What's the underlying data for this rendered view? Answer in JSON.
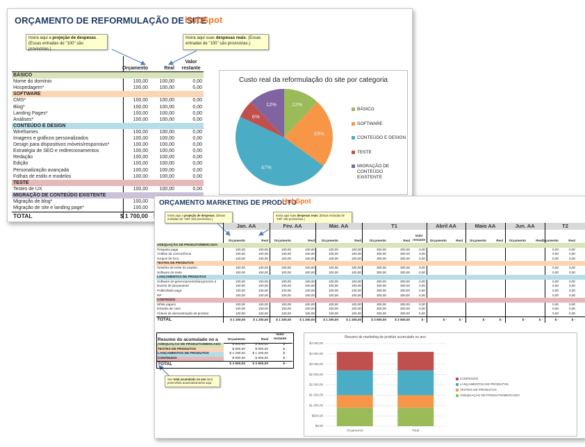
{
  "site_budget": {
    "title": "ORÇAMENTO DE REFORMULAÇÃO DE SITE",
    "logo": "HubSpot",
    "notes": [
      [
        {
          "text": "Insira aqui a "
        },
        {
          "text": "projeção de despesas",
          "bold": true
        },
        {
          "text": ". (Essas entradas de \"100\" são provisórias.)"
        }
      ],
      [
        {
          "text": "Insira aqui suas "
        },
        {
          "text": "despesas reais",
          "bold": true
        },
        {
          "text": ". (Essas entradas de \"100\" são provisórias.)"
        }
      ]
    ],
    "headers": [
      "Orçamento",
      "Real",
      "Valor restante"
    ],
    "rows": [
      {
        "section": "BÁSICO",
        "color": "#d8e4bc"
      },
      {
        "label": "Nome do domínio",
        "cells": [
          "100,00",
          "100,00",
          "0,00"
        ]
      },
      {
        "label": "Hospedagem*",
        "cells": [
          "100,00",
          "100,00",
          "0,00"
        ]
      },
      {
        "section": "SOFTWARE",
        "color": "#fcd5b4"
      },
      {
        "label": "CMS*",
        "cells": [
          "100,00",
          "100,00",
          "0,00"
        ]
      },
      {
        "label": "Blog*",
        "cells": [
          "100,00",
          "100,00",
          "0,00"
        ]
      },
      {
        "label": "Landing Pages*",
        "cells": [
          "100,00",
          "100,00",
          "0,00"
        ]
      },
      {
        "label": "Análises*",
        "cells": [
          "100,00",
          "100,00",
          "0,00"
        ]
      },
      {
        "section": "CONTEÚDO E DESIGN",
        "color": "#b7dee8"
      },
      {
        "label": "Wireframes",
        "cells": [
          "100,00",
          "100,00",
          "0,00"
        ]
      },
      {
        "label": "Imagens e gráficos personalizados",
        "cells": [
          "100,00",
          "100,00",
          "0,00"
        ]
      },
      {
        "label": "Design para dispositivos móveis/responsivo*",
        "cells": [
          "100,00",
          "100,00",
          "0,00"
        ]
      },
      {
        "label": "Estratégia de SEO e redirecionamentos",
        "cells": [
          "100,00",
          "100,00",
          "0,00"
        ]
      },
      {
        "label": "Redação",
        "cells": [
          "100,00",
          "100,00",
          "0,00"
        ]
      },
      {
        "label": "Edição",
        "cells": [
          "100,00",
          "100,00",
          "0,00"
        ]
      },
      {
        "label": "Personalização avançada",
        "cells": [
          "100,00",
          "100,00",
          "0,00"
        ]
      },
      {
        "label": "Folhas de estilo e modelos",
        "cells": [
          "100,00",
          "100,00",
          "0,00"
        ]
      },
      {
        "section": "TESTE",
        "color": "#e6b8b7"
      },
      {
        "label": "Testes de UX",
        "cells": [
          "100,00",
          "100,00",
          "0,00"
        ]
      },
      {
        "section": "MIGRAÇÃO DE CONTEÚDO EXISTENTE",
        "color": "#ccc0da"
      },
      {
        "label": "Migração de blog*",
        "cells": [
          "100,00"
        ]
      },
      {
        "label": "Migração de site e landing page*",
        "cells": [
          "100,00"
        ]
      }
    ],
    "total": {
      "label": "TOTAL",
      "cells": [
        "$ 1 700,00",
        "$"
      ]
    },
    "pie": {
      "type": "pie",
      "title": "Custo real da reformulação do site por categoria",
      "categories": [
        "BÁSICO",
        "SOFTWARE",
        "CONTEÚDO E DESIGN",
        "TESTE",
        "MIGRAÇÃO DE CONTEÚDO EXISTENTE"
      ],
      "values": [
        12,
        23,
        47,
        6,
        12
      ],
      "value_labels": [
        "12%",
        "23%",
        "47%",
        "6%",
        "12%"
      ],
      "colors": [
        "#9bbb59",
        "#f79646",
        "#4bacc6",
        "#c0504d",
        "#8064a2"
      ]
    }
  },
  "product_budget": {
    "title": "ORÇAMENTO MARKETING DE PRODUTO",
    "logo": "HubSpot",
    "notes": [
      [
        {
          "text": "Insira aqui a "
        },
        {
          "text": "projeção de despesas",
          "bold": true
        },
        {
          "text": ". (Essas entradas de \"100\" são provisórias.)"
        }
      ],
      [
        {
          "text": "Insira aqui suas "
        },
        {
          "text": "despesas reais",
          "bold": true
        },
        {
          "text": ". (Essas entradas de \"100\" são provisórias.)"
        }
      ]
    ],
    "periods": [
      "Jan. AA",
      "Fev. AA",
      "Mar. AA",
      "T1",
      "Abril AA",
      "Maio AA",
      "Jun. AA",
      "T2"
    ],
    "subheaders": [
      "Orçamento",
      "Real",
      "Valor restante"
    ],
    "rows": [
      {
        "section": "ADEQUAÇÃO DE PRODUTO/MERCADO",
        "color": "#d8e4bc"
      },
      {
        "label": "Pesquisa paga",
        "q1": [
          "100,00",
          "100,00",
          "100,00",
          "100,00",
          "100,00",
          "100,00",
          "300,00",
          "300,00",
          "0,00"
        ],
        "t2": [
          "0,00",
          "0,00"
        ]
      },
      {
        "label": "Análise da concorrência",
        "q1": [
          "100,00",
          "100,00",
          "100,00",
          "100,00",
          "100,00",
          "100,00",
          "300,00",
          "300,00",
          "0,00"
        ],
        "t2": [
          "0,00",
          "0,00"
        ]
      },
      {
        "label": "Grupos de foco",
        "q1": [
          "100,00",
          "100,00",
          "100,00",
          "100,00",
          "100,00",
          "100,00",
          "300,00",
          "300,00",
          "0,00"
        ],
        "t2": [
          "0,00",
          "0,00"
        ]
      },
      {
        "section": "TESTES DE PRODUTOS",
        "color": "#fcd5b4"
      },
      {
        "label": "Sessões de teste do usuário",
        "q1": [
          "100,00",
          "100,00",
          "100,00",
          "100,00",
          "100,00",
          "100,00",
          "300,00",
          "300,00",
          "0,00"
        ],
        "t2": [
          "0,00",
          "0,00"
        ]
      },
      {
        "label": "Software de teste",
        "q1": [
          "100,00",
          "100,00",
          "100,00",
          "100,00",
          "100,00",
          "100,00",
          "300,00",
          "300,00",
          "0,00"
        ],
        "t2": [
          "0,00",
          "0,00"
        ]
      },
      {
        "section": "LANÇAMENTOS DE PRODUTOS",
        "color": "#b7dee8"
      },
      {
        "label": "Software de gerenciamento/lançamento d",
        "q1": [
          "100,00",
          "100,00",
          "100,00",
          "100,00",
          "100,00",
          "100,00",
          "300,00",
          "300,00",
          "0,00"
        ],
        "t2": [
          "0,00",
          "0,00"
        ]
      },
      {
        "label": "Evento de lançamento",
        "q1": [
          "100,00",
          "100,00",
          "100,00",
          "100,00",
          "100,00",
          "100,00",
          "300,00",
          "300,00",
          "0,00"
        ],
        "t2": [
          "0,00",
          "0,00"
        ]
      },
      {
        "label": "Publicidade paga",
        "q1": [
          "100,00",
          "100,00",
          "100,00",
          "100,00",
          "100,00",
          "100,00",
          "300,00",
          "300,00",
          "0,00"
        ],
        "t2": [
          "0,00",
          "0,00"
        ]
      },
      {
        "label": "RP",
        "q1": [
          "100,00",
          "100,00",
          "100,00",
          "100,00",
          "100,00",
          "100,00",
          "300,00",
          "300,00",
          "0,00"
        ],
        "t2": [
          "0,00",
          "0,00"
        ]
      },
      {
        "section": "CONTEÚDO",
        "color": "#e6b8b7"
      },
      {
        "label": "White papers",
        "q1": [
          "100,00",
          "100,00",
          "100,00",
          "100,00",
          "100,00",
          "100,00",
          "300,00",
          "300,00",
          "0,00"
        ],
        "t2": [
          "0,00",
          "0,00"
        ]
      },
      {
        "label": "Estudos de caso",
        "q1": [
          "100,00",
          "100,00",
          "100,00",
          "100,00",
          "100,00",
          "100,00",
          "300,00",
          "300,00",
          "0,00"
        ],
        "t2": [
          "0,00",
          "0,00"
        ]
      },
      {
        "label": "Vídeos de demonstração de produto",
        "q1": [
          "100,00",
          "100,00",
          "100,00",
          "100,00",
          "100,00",
          "100,00",
          "300,00",
          "300,00",
          "0,00"
        ],
        "t2": [
          "0,00",
          "0,00"
        ]
      }
    ],
    "total": {
      "label": "TOTAL",
      "q1": [
        "$ 1 200,00",
        "$ 1 200,00",
        "$ 1 200,00",
        "$ 1 200,00",
        "$ 1 200,00",
        "$ 1 200,00",
        "$ 3 600,00",
        "$ 3 600,00",
        "$ -"
      ],
      "q2_months": [
        "$ -",
        "$ -",
        "$ -",
        "$ -",
        "$ -",
        "$ -"
      ],
      "t2": [
        "$ -",
        "$ -"
      ]
    },
    "summary": {
      "title": "Resumo do acumulado no a",
      "headers": [
        "Orçamento",
        "Real",
        "Valor restante"
      ],
      "rows": [
        {
          "label": "ADEQUAÇÃO DE PRODUTO/MERCADO",
          "color": "#d8e4bc",
          "cells": [
            "$ 900,00",
            "$ 900,00",
            "$ -"
          ]
        },
        {
          "label": "TESTES DE PRODUTOS",
          "color": "#fcd5b4",
          "cells": [
            "$ 600,00",
            "$ 600,00",
            "$ -"
          ]
        },
        {
          "label": "LANÇAMENTOS DE PRODUTOS",
          "color": "#b7dee8",
          "cells": [
            "$ 1 200,00",
            "$ 1 200,00",
            "$ -"
          ]
        },
        {
          "label": "CONTEÚDO",
          "color": "#e6b8b7",
          "cells": [
            "$ 900,00",
            "$ 900,00",
            "$ -"
          ]
        }
      ],
      "total": {
        "label": "TOTAL",
        "cells": [
          "$ 3 600,00",
          "$ 3 600,00",
          "$ -"
        ]
      },
      "note": [
        {
          "text": "Seu "
        },
        {
          "text": "total acumulado no ano",
          "bold": true
        },
        {
          "text": " será preenchido automaticamente aqui."
        }
      ]
    },
    "chart": {
      "type": "bar",
      "stacked": true,
      "title": "Resumo de marketing de produto acumulado no ano",
      "categories": [
        "Orçamento",
        "Real"
      ],
      "series": [
        {
          "name": "ADEQUAÇÃO DE PRODUTO/MERCADO",
          "color": "#9bbb59",
          "values": [
            900,
            900
          ]
        },
        {
          "name": "TESTES DE PRODUTOS",
          "color": "#f79646",
          "values": [
            600,
            600
          ]
        },
        {
          "name": "LANÇAMENTOS DE PRODUTOS",
          "color": "#4bacc6",
          "values": [
            1200,
            1200
          ]
        },
        {
          "name": "CONTEÚDO",
          "color": "#c0504d",
          "values": [
            900,
            900
          ]
        }
      ],
      "ylim": [
        0,
        4000
      ],
      "yticks": [
        {
          "value": 0,
          "label": "$0,00"
        },
        {
          "value": 500,
          "label": "$500,00"
        },
        {
          "value": 1000,
          "label": "$1 000,00"
        },
        {
          "value": 1500,
          "label": "$1 500,00"
        },
        {
          "value": 2000,
          "label": "$2 000,00"
        },
        {
          "value": 2500,
          "label": "$2 500,00"
        },
        {
          "value": 3000,
          "label": "$3 000,00"
        },
        {
          "value": 3500,
          "label": "$3 500,00"
        },
        {
          "value": 4000,
          "label": "$4 000,00"
        }
      ],
      "grid": true
    }
  }
}
